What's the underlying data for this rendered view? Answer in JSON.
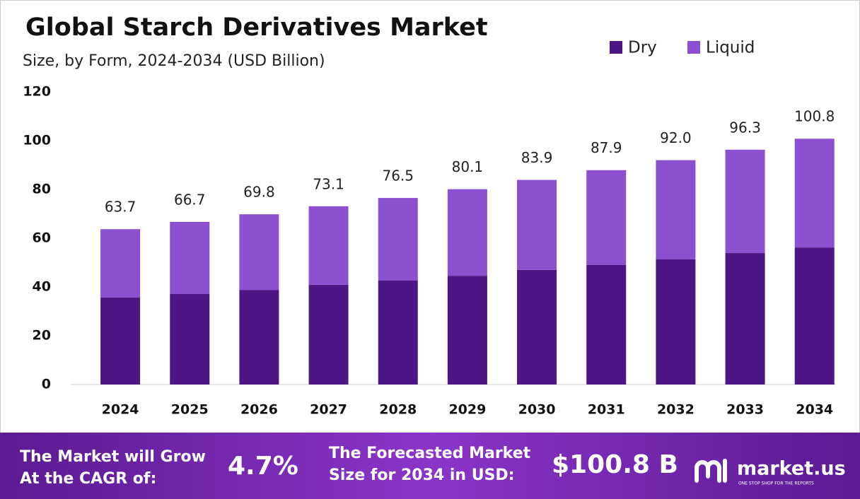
{
  "chart_data": {
    "type": "stacked_bar",
    "title": "Global Starch Derivatives Market",
    "subtitle": "Size, by Form, 2024-2034 (USD Billion)",
    "categories": [
      "2024",
      "2025",
      "2026",
      "2027",
      "2028",
      "2029",
      "2030",
      "2031",
      "2032",
      "2033",
      "2034"
    ],
    "series": [
      {
        "name": "Dry",
        "color": "#4e1585",
        "values": [
          35.7,
          37.1,
          38.8,
          40.9,
          42.6,
          44.6,
          47.0,
          49.0,
          51.3,
          53.9,
          56.2
        ]
      },
      {
        "name": "Liquid",
        "color": "#8b4fd0",
        "values": [
          28.0,
          29.6,
          31.0,
          32.2,
          33.9,
          35.5,
          36.9,
          38.9,
          40.7,
          42.4,
          44.6
        ]
      }
    ],
    "totals": [
      63.7,
      66.7,
      69.8,
      73.1,
      76.5,
      80.1,
      83.9,
      87.9,
      {
        "value": 92.0,
        "label": "92.0"
      },
      96.3,
      100.8
    ],
    "ylim": [
      0,
      120
    ],
    "yticks": [
      0,
      20,
      40,
      60,
      80,
      100,
      120
    ],
    "grid": false,
    "legend": "top-right"
  },
  "footer": {
    "cagr_text": [
      "The Market will Grow",
      "At the CAGR of:"
    ],
    "cagr_value": "4.7%",
    "forecast_text": [
      "The Forecasted Market",
      "Size for 2034 in USD:"
    ],
    "forecast_value": "$100.8 B",
    "brand": "market.us",
    "tagline": "ONE STOP SHOP FOR THE REPORTS"
  }
}
